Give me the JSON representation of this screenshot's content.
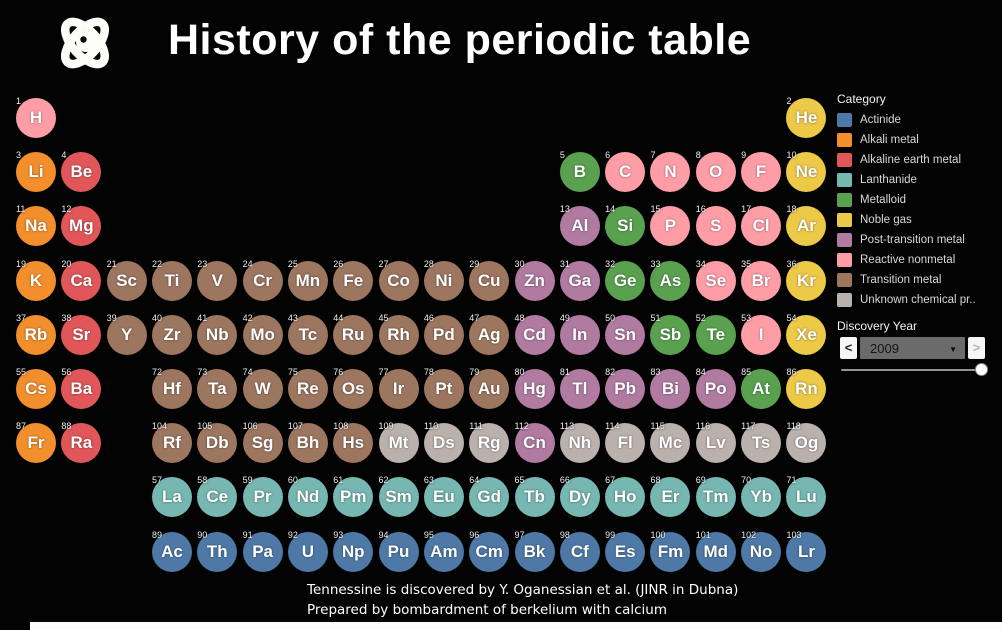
{
  "header": {
    "title": "History of the periodic table",
    "logo": "atom-icon"
  },
  "legend": {
    "title": "Category",
    "items": [
      {
        "key": "actinide",
        "label": "Actinide",
        "color": "#4e79a7"
      },
      {
        "key": "alkali",
        "label": "Alkali metal",
        "color": "#f28e2b"
      },
      {
        "key": "alkaline",
        "label": "Alkaline earth metal",
        "color": "#e15759"
      },
      {
        "key": "lanthanide",
        "label": "Lanthanide",
        "color": "#76b7b2"
      },
      {
        "key": "metalloid",
        "label": "Metalloid",
        "color": "#59a14f"
      },
      {
        "key": "noble",
        "label": "Noble gas",
        "color": "#edc948"
      },
      {
        "key": "post",
        "label": "Post-transition metal",
        "color": "#b07aa1"
      },
      {
        "key": "reactive",
        "label": "Reactive nonmetal",
        "color": "#ff9da7"
      },
      {
        "key": "transition",
        "label": "Transition metal",
        "color": "#9d7660"
      },
      {
        "key": "unknown",
        "label": "Unknown chemical pr..",
        "color": "#bab0ac"
      }
    ]
  },
  "year_control": {
    "label": "Discovery Year",
    "value": "2009",
    "prev_glyph": "<",
    "next_glyph": ">",
    "caret_glyph": "▼",
    "slider_position_pct": 93
  },
  "caption": {
    "line1": "Tennessine is discovered by Y. Oganessian et al. (JINR in Dubna)",
    "line2": "Prepared by bombardment of berkelium with calcium"
  },
  "chart_data": {
    "type": "table",
    "title": "History of the periodic table",
    "note": "Periodic table marks colored by element category; each entry is [atomic_number, symbol, grid_row, grid_column, category_key]",
    "elements": [
      [
        1,
        "H",
        1,
        1,
        "reactive"
      ],
      [
        2,
        "He",
        1,
        18,
        "noble"
      ],
      [
        3,
        "Li",
        2,
        1,
        "alkali"
      ],
      [
        4,
        "Be",
        2,
        2,
        "alkaline"
      ],
      [
        5,
        "B",
        2,
        13,
        "metalloid"
      ],
      [
        6,
        "C",
        2,
        14,
        "reactive"
      ],
      [
        7,
        "N",
        2,
        15,
        "reactive"
      ],
      [
        8,
        "O",
        2,
        16,
        "reactive"
      ],
      [
        9,
        "F",
        2,
        17,
        "reactive"
      ],
      [
        10,
        "Ne",
        2,
        18,
        "noble"
      ],
      [
        11,
        "Na",
        3,
        1,
        "alkali"
      ],
      [
        12,
        "Mg",
        3,
        2,
        "alkaline"
      ],
      [
        13,
        "Al",
        3,
        13,
        "post"
      ],
      [
        14,
        "Si",
        3,
        14,
        "metalloid"
      ],
      [
        15,
        "P",
        3,
        15,
        "reactive"
      ],
      [
        16,
        "S",
        3,
        16,
        "reactive"
      ],
      [
        17,
        "Cl",
        3,
        17,
        "reactive"
      ],
      [
        18,
        "Ar",
        3,
        18,
        "noble"
      ],
      [
        19,
        "K",
        4,
        1,
        "alkali"
      ],
      [
        20,
        "Ca",
        4,
        2,
        "alkaline"
      ],
      [
        21,
        "Sc",
        4,
        3,
        "transition"
      ],
      [
        22,
        "Ti",
        4,
        4,
        "transition"
      ],
      [
        23,
        "V",
        4,
        5,
        "transition"
      ],
      [
        24,
        "Cr",
        4,
        6,
        "transition"
      ],
      [
        25,
        "Mn",
        4,
        7,
        "transition"
      ],
      [
        26,
        "Fe",
        4,
        8,
        "transition"
      ],
      [
        27,
        "Co",
        4,
        9,
        "transition"
      ],
      [
        28,
        "Ni",
        4,
        10,
        "transition"
      ],
      [
        29,
        "Cu",
        4,
        11,
        "transition"
      ],
      [
        30,
        "Zn",
        4,
        12,
        "post"
      ],
      [
        31,
        "Ga",
        4,
        13,
        "post"
      ],
      [
        32,
        "Ge",
        4,
        14,
        "metalloid"
      ],
      [
        33,
        "As",
        4,
        15,
        "metalloid"
      ],
      [
        34,
        "Se",
        4,
        16,
        "reactive"
      ],
      [
        35,
        "Br",
        4,
        17,
        "reactive"
      ],
      [
        36,
        "Kr",
        4,
        18,
        "noble"
      ],
      [
        37,
        "Rb",
        5,
        1,
        "alkali"
      ],
      [
        38,
        "Sr",
        5,
        2,
        "alkaline"
      ],
      [
        39,
        "Y",
        5,
        3,
        "transition"
      ],
      [
        40,
        "Zr",
        5,
        4,
        "transition"
      ],
      [
        41,
        "Nb",
        5,
        5,
        "transition"
      ],
      [
        42,
        "Mo",
        5,
        6,
        "transition"
      ],
      [
        43,
        "Tc",
        5,
        7,
        "transition"
      ],
      [
        44,
        "Ru",
        5,
        8,
        "transition"
      ],
      [
        45,
        "Rh",
        5,
        9,
        "transition"
      ],
      [
        46,
        "Pd",
        5,
        10,
        "transition"
      ],
      [
        47,
        "Ag",
        5,
        11,
        "transition"
      ],
      [
        48,
        "Cd",
        5,
        12,
        "post"
      ],
      [
        49,
        "In",
        5,
        13,
        "post"
      ],
      [
        50,
        "Sn",
        5,
        14,
        "post"
      ],
      [
        51,
        "Sb",
        5,
        15,
        "metalloid"
      ],
      [
        52,
        "Te",
        5,
        16,
        "metalloid"
      ],
      [
        53,
        "I",
        5,
        17,
        "reactive"
      ],
      [
        54,
        "Xe",
        5,
        18,
        "noble"
      ],
      [
        55,
        "Cs",
        6,
        1,
        "alkali"
      ],
      [
        56,
        "Ba",
        6,
        2,
        "alkaline"
      ],
      [
        72,
        "Hf",
        6,
        4,
        "transition"
      ],
      [
        73,
        "Ta",
        6,
        5,
        "transition"
      ],
      [
        74,
        "W",
        6,
        6,
        "transition"
      ],
      [
        75,
        "Re",
        6,
        7,
        "transition"
      ],
      [
        76,
        "Os",
        6,
        8,
        "transition"
      ],
      [
        77,
        "Ir",
        6,
        9,
        "transition"
      ],
      [
        78,
        "Pt",
        6,
        10,
        "transition"
      ],
      [
        79,
        "Au",
        6,
        11,
        "transition"
      ],
      [
        80,
        "Hg",
        6,
        12,
        "post"
      ],
      [
        81,
        "Tl",
        6,
        13,
        "post"
      ],
      [
        82,
        "Pb",
        6,
        14,
        "post"
      ],
      [
        83,
        "Bi",
        6,
        15,
        "post"
      ],
      [
        84,
        "Po",
        6,
        16,
        "post"
      ],
      [
        85,
        "At",
        6,
        17,
        "metalloid"
      ],
      [
        86,
        "Rn",
        6,
        18,
        "noble"
      ],
      [
        87,
        "Fr",
        7,
        1,
        "alkali"
      ],
      [
        88,
        "Ra",
        7,
        2,
        "alkaline"
      ],
      [
        104,
        "Rf",
        7,
        4,
        "transition"
      ],
      [
        105,
        "Db",
        7,
        5,
        "transition"
      ],
      [
        106,
        "Sg",
        7,
        6,
        "transition"
      ],
      [
        107,
        "Bh",
        7,
        7,
        "transition"
      ],
      [
        108,
        "Hs",
        7,
        8,
        "transition"
      ],
      [
        109,
        "Mt",
        7,
        9,
        "unknown"
      ],
      [
        110,
        "Ds",
        7,
        10,
        "unknown"
      ],
      [
        111,
        "Rg",
        7,
        11,
        "unknown"
      ],
      [
        112,
        "Cn",
        7,
        12,
        "post"
      ],
      [
        113,
        "Nh",
        7,
        13,
        "unknown"
      ],
      [
        114,
        "Fl",
        7,
        14,
        "unknown"
      ],
      [
        115,
        "Mc",
        7,
        15,
        "unknown"
      ],
      [
        116,
        "Lv",
        7,
        16,
        "unknown"
      ],
      [
        117,
        "Ts",
        7,
        17,
        "unknown"
      ],
      [
        118,
        "Og",
        7,
        18,
        "unknown"
      ],
      [
        57,
        "La",
        8,
        4,
        "lanthanide"
      ],
      [
        58,
        "Ce",
        8,
        5,
        "lanthanide"
      ],
      [
        59,
        "Pr",
        8,
        6,
        "lanthanide"
      ],
      [
        60,
        "Nd",
        8,
        7,
        "lanthanide"
      ],
      [
        61,
        "Pm",
        8,
        8,
        "lanthanide"
      ],
      [
        62,
        "Sm",
        8,
        9,
        "lanthanide"
      ],
      [
        63,
        "Eu",
        8,
        10,
        "lanthanide"
      ],
      [
        64,
        "Gd",
        8,
        11,
        "lanthanide"
      ],
      [
        65,
        "Tb",
        8,
        12,
        "lanthanide"
      ],
      [
        66,
        "Dy",
        8,
        13,
        "lanthanide"
      ],
      [
        67,
        "Ho",
        8,
        14,
        "lanthanide"
      ],
      [
        68,
        "Er",
        8,
        15,
        "lanthanide"
      ],
      [
        69,
        "Tm",
        8,
        16,
        "lanthanide"
      ],
      [
        70,
        "Yb",
        8,
        17,
        "lanthanide"
      ],
      [
        71,
        "Lu",
        8,
        18,
        "lanthanide"
      ],
      [
        89,
        "Ac",
        9,
        4,
        "actinide"
      ],
      [
        90,
        "Th",
        9,
        5,
        "actinide"
      ],
      [
        91,
        "Pa",
        9,
        6,
        "actinide"
      ],
      [
        92,
        "U",
        9,
        7,
        "actinide"
      ],
      [
        93,
        "Np",
        9,
        8,
        "actinide"
      ],
      [
        94,
        "Pu",
        9,
        9,
        "actinide"
      ],
      [
        95,
        "Am",
        9,
        10,
        "actinide"
      ],
      [
        96,
        "Cm",
        9,
        11,
        "actinide"
      ],
      [
        97,
        "Bk",
        9,
        12,
        "actinide"
      ],
      [
        98,
        "Cf",
        9,
        13,
        "actinide"
      ],
      [
        99,
        "Es",
        9,
        14,
        "actinide"
      ],
      [
        100,
        "Fm",
        9,
        15,
        "actinide"
      ],
      [
        101,
        "Md",
        9,
        16,
        "actinide"
      ],
      [
        102,
        "No",
        9,
        17,
        "actinide"
      ],
      [
        103,
        "Lr",
        9,
        18,
        "actinide"
      ]
    ]
  }
}
